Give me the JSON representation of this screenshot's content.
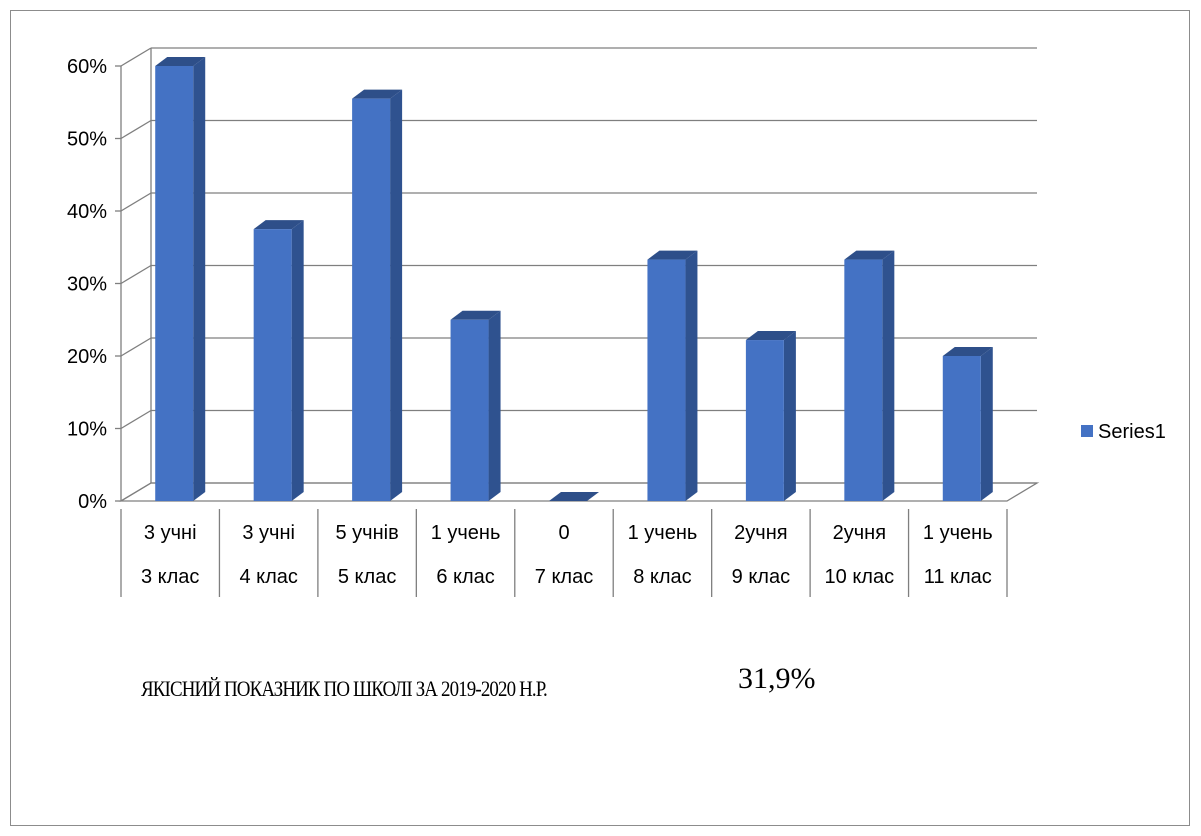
{
  "chart_data": {
    "type": "bar",
    "style": "3d-column",
    "y_axis": {
      "min": 0,
      "max": 0.6,
      "step": 0.1,
      "tick_labels": [
        "0%",
        "10%",
        "20%",
        "30%",
        "40%",
        "50%",
        "60%"
      ]
    },
    "grid": true,
    "categories": [
      {
        "top": "3 учні",
        "bottom": "3 клас"
      },
      {
        "top": "3 учні",
        "bottom": "4 клас"
      },
      {
        "top": "5 учнів",
        "bottom": "5 клас"
      },
      {
        "top": "1 учень",
        "bottom": "6 клас"
      },
      {
        "top": "0",
        "bottom": "7 клас"
      },
      {
        "top": "1 учень",
        "bottom": "8 клас"
      },
      {
        "top": "2учня",
        "bottom": "9 клас"
      },
      {
        "top": "2учня",
        "bottom": "10 клас"
      },
      {
        "top": "1 учень",
        "bottom": "11 клас"
      }
    ],
    "series": [
      {
        "name": "Series1",
        "color": "#4472c4",
        "values": [
          0.6,
          0.375,
          0.555,
          0.25,
          0.0,
          0.333,
          0.222,
          0.333,
          0.2
        ]
      }
    ],
    "legend": {
      "position": "right"
    }
  },
  "footer": {
    "title": "ЯКІСНИЙ ПОКАЗНИК ПО ШКОЛІ ЗА 2019-2020 Н.Р.",
    "value": "31,9%"
  }
}
